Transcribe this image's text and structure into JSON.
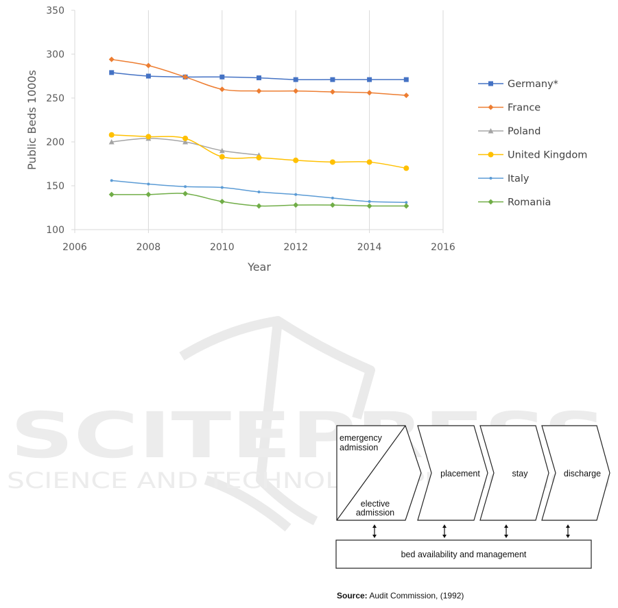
{
  "chart_data": {
    "type": "line",
    "xlabel": "Year",
    "ylabel": "Public Beds 1000s",
    "xlim": [
      2006,
      2016
    ],
    "ylim": [
      100,
      350
    ],
    "x_ticks": [
      2006,
      2008,
      2010,
      2012,
      2014,
      2016
    ],
    "y_ticks": [
      100,
      150,
      200,
      250,
      300,
      350
    ],
    "grid": "vertical",
    "legend_position": "right",
    "x": [
      2007,
      2008,
      2009,
      2010,
      2011,
      2012,
      2013,
      2014,
      2015
    ],
    "series": [
      {
        "name": "Germany*",
        "color": "#4472C4",
        "marker": "square",
        "values": [
          279,
          275,
          274,
          274,
          273,
          271,
          271,
          271,
          271
        ]
      },
      {
        "name": "France",
        "color": "#ED7D31",
        "marker": "diamond",
        "values": [
          294,
          287,
          274,
          260,
          258,
          258,
          257,
          256,
          253
        ]
      },
      {
        "name": "Poland",
        "color": "#A5A5A5",
        "marker": "triangle",
        "values": [
          200,
          204,
          200,
          190,
          185,
          null,
          null,
          null,
          null
        ]
      },
      {
        "name": "United Kingdom",
        "color": "#FFC000",
        "marker": "circle",
        "values": [
          208,
          206,
          204,
          183,
          182,
          179,
          177,
          177,
          170
        ]
      },
      {
        "name": "Italy",
        "color": "#5B9BD5",
        "marker": "dot",
        "values": [
          156,
          152,
          149,
          148,
          143,
          140,
          136,
          132,
          131
        ]
      },
      {
        "name": "Romania",
        "color": "#70AD47",
        "marker": "diamond",
        "values": [
          140,
          140,
          141,
          132,
          127,
          128,
          128,
          127,
          127
        ]
      }
    ]
  },
  "watermark": {
    "title": "SCITEPRESS",
    "subtitle": "SCIENCE AND TECHNOLOGY PUBLICATIONS"
  },
  "flow_diagram": {
    "emergency_admission": [
      "emergency",
      "admission"
    ],
    "elective_admission": [
      "elective",
      "admission"
    ],
    "steps": [
      "placement",
      "stay",
      "discharge"
    ],
    "base_label": "bed availability and management",
    "source_label": "Source:",
    "source_text": "Audit Commission, (1992)"
  }
}
